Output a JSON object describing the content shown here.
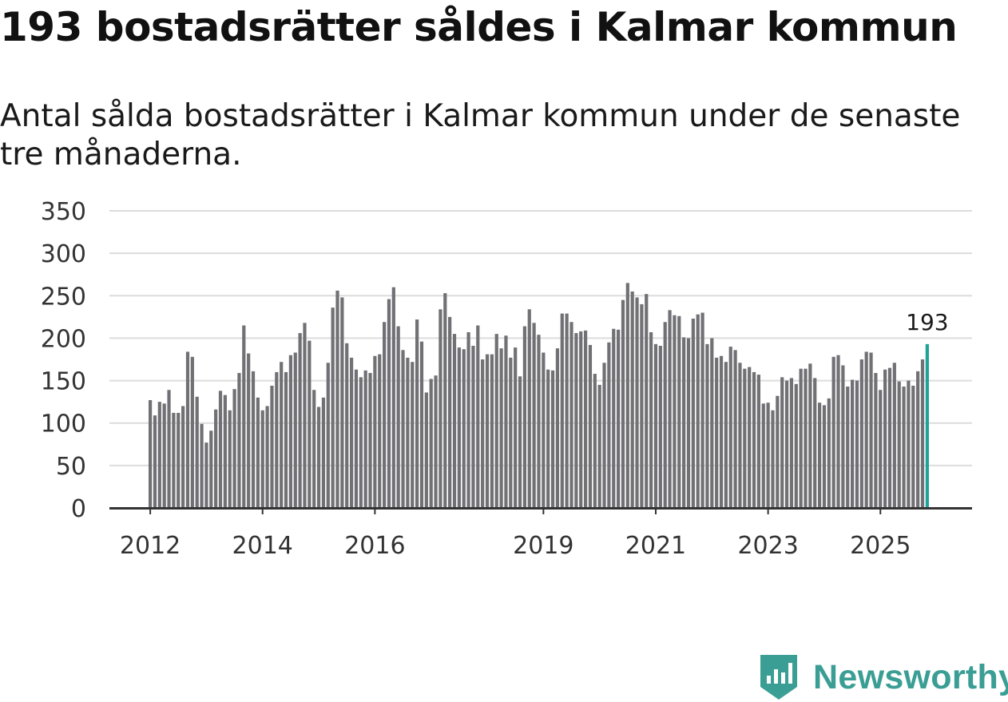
{
  "chart_data": {
    "type": "bar",
    "title": "193 bostadsrätter såldes i Kalmar kommun",
    "subtitle": "Antal sålda bostadsrätter i Kalmar kommun under de senaste tre månaderna.",
    "xlabel": "",
    "ylabel": "",
    "ylim": [
      0,
      350
    ],
    "yticks": [
      0,
      50,
      100,
      150,
      200,
      250,
      300,
      350
    ],
    "grid": true,
    "start_month": "2012-01",
    "x_tick_labels": [
      "2012",
      "2014",
      "2016",
      "2019",
      "2021",
      "2023",
      "2025"
    ],
    "x_tick_month_index": [
      0,
      24,
      48,
      84,
      108,
      132,
      156
    ],
    "values": [
      127,
      109,
      125,
      123,
      139,
      112,
      112,
      120,
      184,
      178,
      131,
      99,
      77,
      91,
      116,
      138,
      133,
      115,
      140,
      159,
      215,
      182,
      161,
      130,
      115,
      120,
      144,
      160,
      172,
      160,
      180,
      183,
      206,
      218,
      197,
      139,
      119,
      130,
      171,
      236,
      256,
      248,
      194,
      177,
      163,
      154,
      162,
      159,
      179,
      181,
      219,
      246,
      260,
      214,
      186,
      177,
      172,
      222,
      196,
      136,
      152,
      156,
      234,
      253,
      225,
      205,
      189,
      187,
      207,
      191,
      215,
      175,
      181,
      181,
      205,
      188,
      203,
      177,
      189,
      155,
      214,
      234,
      218,
      204,
      183,
      163,
      162,
      188,
      229,
      229,
      219,
      206,
      208,
      209,
      192,
      158,
      145,
      171,
      195,
      211,
      210,
      245,
      265,
      255,
      248,
      240,
      252,
      207,
      193,
      191,
      219,
      233,
      227,
      226,
      201,
      200,
      223,
      228,
      230,
      193,
      200,
      177,
      179,
      172,
      190,
      186,
      171,
      164,
      166,
      160,
      157,
      123,
      124,
      115,
      132,
      154,
      150,
      153,
      146,
      164,
      164,
      170,
      153,
      124,
      121,
      129,
      178,
      180,
      168,
      143,
      151,
      150,
      175,
      184,
      183,
      159,
      139,
      163,
      165,
      171,
      149,
      143,
      150,
      144,
      161,
      175,
      193
    ],
    "highlight_index": 166,
    "highlight_label": "193",
    "colors": {
      "bar": "#707075",
      "highlight": "#1fa398",
      "axis": "#333333",
      "grid": "#dcdcdc"
    }
  },
  "brand": {
    "name": "Newsworthy",
    "icon": "newsworthy-logo-icon",
    "color": "#3a9e94"
  }
}
